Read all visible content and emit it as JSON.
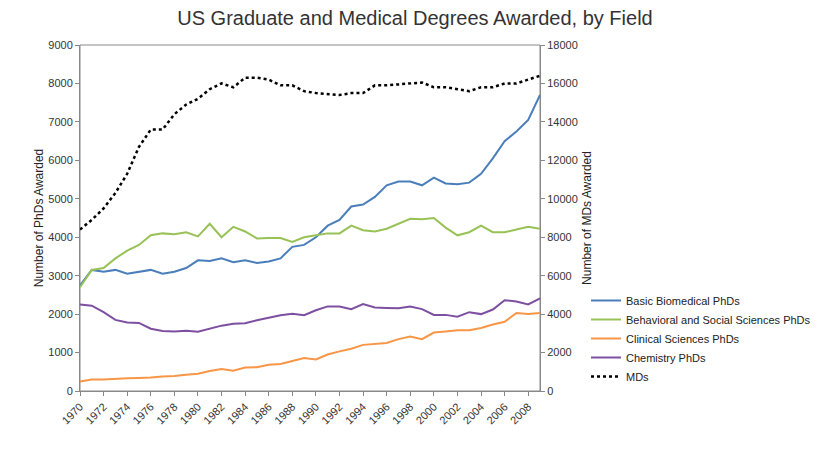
{
  "chart_data": {
    "type": "line",
    "title": "US Graduate and Medical Degrees Awarded, by Field",
    "x_label": "",
    "y_label": "Number of PhDs Awarded",
    "y2_label": "Number of MDs Awarded",
    "x": [
      1970,
      1971,
      1972,
      1973,
      1974,
      1975,
      1976,
      1977,
      1978,
      1979,
      1980,
      1981,
      1982,
      1983,
      1984,
      1985,
      1986,
      1987,
      1988,
      1989,
      1990,
      1991,
      1992,
      1993,
      1994,
      1995,
      1996,
      1997,
      1998,
      1999,
      2000,
      2001,
      2002,
      2003,
      2004,
      2005,
      2006,
      2007,
      2008,
      2009
    ],
    "xlim": [
      1970,
      2009
    ],
    "xticks": [
      1970,
      1972,
      1974,
      1976,
      1978,
      1980,
      1982,
      1984,
      1986,
      1988,
      1990,
      1992,
      1994,
      1996,
      1998,
      2000,
      2002,
      2004,
      2006,
      2008
    ],
    "ylim": [
      0,
      9000
    ],
    "yticks": [
      0,
      1000,
      2000,
      3000,
      4000,
      5000,
      6000,
      7000,
      8000,
      9000
    ],
    "y2lim": [
      0,
      18000
    ],
    "y2ticks": [
      0,
      2000,
      4000,
      6000,
      8000,
      10000,
      12000,
      14000,
      16000,
      18000
    ],
    "grid": false,
    "legend": "bottom right",
    "series": [
      {
        "name": "Basic Biomedical PhDs",
        "color": "#4a7ebb",
        "line_style": "solid",
        "values": [
          2750,
          3150,
          3100,
          3150,
          3050,
          3100,
          3150,
          3050,
          3100,
          3200,
          3400,
          3380,
          3450,
          3350,
          3400,
          3330,
          3370,
          3450,
          3750,
          3800,
          4000,
          4300,
          4450,
          4800,
          4850,
          5050,
          5350,
          5450,
          5450,
          5350,
          5550,
          5400,
          5380,
          5420,
          5650,
          6050,
          6500,
          6750,
          7050,
          7700
        ]
      },
      {
        "name": "Behavioral and Social Sciences PhDs",
        "color": "#98c256",
        "line_style": "solid",
        "values": [
          2700,
          3150,
          3200,
          3450,
          3650,
          3800,
          4050,
          4100,
          4080,
          4130,
          4020,
          4350,
          4000,
          4270,
          4150,
          3970,
          3980,
          3980,
          3880,
          4000,
          4050,
          4100,
          4100,
          4300,
          4180,
          4150,
          4220,
          4350,
          4480,
          4470,
          4500,
          4250,
          4050,
          4130,
          4300,
          4130,
          4130,
          4200,
          4270,
          4220
        ]
      },
      {
        "name": "Clinical Sciences PhDs",
        "color": "#f79646",
        "line_style": "solid",
        "values": [
          250,
          300,
          300,
          320,
          330,
          340,
          350,
          380,
          390,
          420,
          450,
          520,
          570,
          530,
          610,
          620,
          680,
          700,
          780,
          860,
          820,
          950,
          1030,
          1100,
          1200,
          1220,
          1250,
          1350,
          1420,
          1350,
          1520,
          1550,
          1580,
          1580,
          1640,
          1730,
          1800,
          2030,
          2000,
          2030
        ]
      },
      {
        "name": "Chemistry PhDs",
        "color": "#7d4fa0",
        "line_style": "solid",
        "values": [
          2250,
          2220,
          2050,
          1850,
          1780,
          1770,
          1620,
          1560,
          1550,
          1570,
          1540,
          1620,
          1700,
          1750,
          1760,
          1840,
          1900,
          1970,
          2010,
          1970,
          2100,
          2200,
          2200,
          2130,
          2260,
          2170,
          2160,
          2150,
          2200,
          2130,
          1980,
          1980,
          1930,
          2050,
          2000,
          2120,
          2360,
          2330,
          2250,
          2410
        ]
      },
      {
        "name": "MDs",
        "color": "#000000",
        "line_style": "dotted",
        "axis": "y2",
        "values": [
          8400,
          8900,
          9500,
          10300,
          11300,
          12700,
          13600,
          13600,
          14400,
          14900,
          15200,
          15700,
          16000,
          15800,
          16300,
          16300,
          16200,
          15900,
          15900,
          15600,
          15500,
          15450,
          15400,
          15500,
          15500,
          15900,
          15900,
          15950,
          16000,
          16050,
          15800,
          15800,
          15700,
          15600,
          15800,
          15800,
          16000,
          16000,
          16200,
          16400
        ]
      }
    ]
  }
}
